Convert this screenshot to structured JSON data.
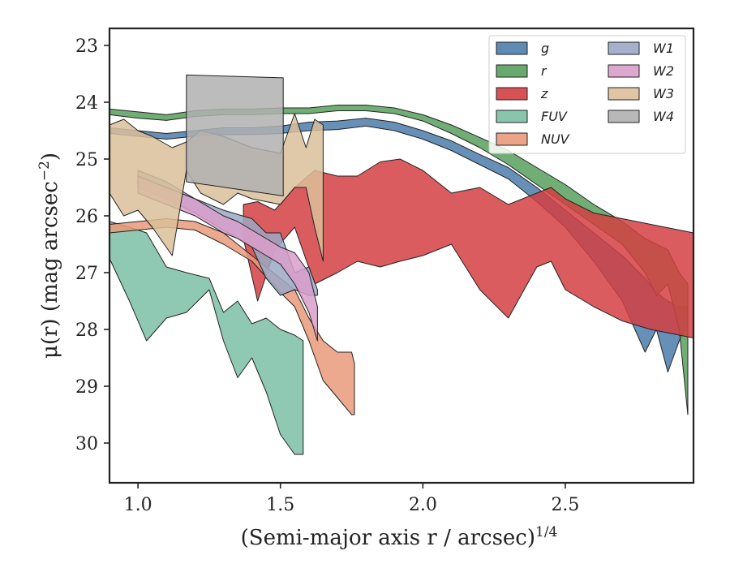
{
  "chart_data": {
    "type": "area",
    "xlabel": "(Semi-major axis r / arcsec)",
    "xlabel_sup": "1/4",
    "ylabel": "μ(r) (mag arcsec",
    "ylabel_sup": "−2",
    "ylabel_close": ")",
    "xlim": [
      0.9,
      2.95
    ],
    "ylim": [
      30.7,
      22.7
    ],
    "y_inverted": true,
    "xticks": [
      "1.0",
      "1.5",
      "2.0",
      "2.5"
    ],
    "xtick_values": [
      1.0,
      1.5,
      2.0,
      2.5
    ],
    "yticks": [
      "23",
      "24",
      "25",
      "26",
      "27",
      "28",
      "29",
      "30"
    ],
    "ytick_values": [
      23,
      24,
      25,
      26,
      27,
      28,
      29,
      30
    ],
    "grid": false,
    "legend_position": "top-right",
    "legend_columns": 2,
    "series": [
      {
        "name": "g",
        "color": "#4c7dac",
        "x": [
          0.9,
          1.0,
          1.1,
          1.2,
          1.3,
          1.4,
          1.5,
          1.6,
          1.7,
          1.8,
          1.9,
          2.0,
          2.1,
          2.2,
          2.3,
          2.4,
          2.5,
          2.6,
          2.7,
          2.78,
          2.82,
          2.86,
          2.9,
          2.93
        ],
        "y_upper": [
          24.45,
          24.5,
          24.55,
          24.5,
          24.45,
          24.45,
          24.42,
          24.35,
          24.33,
          24.28,
          24.35,
          24.5,
          24.68,
          24.92,
          25.15,
          25.5,
          25.9,
          26.3,
          26.7,
          27.1,
          27.35,
          27.5,
          27.6,
          27.6
        ],
        "y_lower": [
          24.55,
          24.6,
          24.65,
          24.6,
          24.57,
          24.57,
          24.55,
          24.5,
          24.48,
          24.42,
          24.5,
          24.65,
          24.85,
          25.1,
          25.35,
          25.75,
          26.2,
          26.8,
          27.5,
          28.4,
          28.0,
          28.75,
          28.2,
          27.9
        ]
      },
      {
        "name": "r",
        "color": "#58a05e",
        "x": [
          0.9,
          1.0,
          1.1,
          1.2,
          1.3,
          1.4,
          1.5,
          1.6,
          1.7,
          1.8,
          1.9,
          2.0,
          2.1,
          2.2,
          2.3,
          2.4,
          2.5,
          2.6,
          2.7,
          2.78,
          2.82,
          2.86,
          2.9,
          2.93
        ],
        "y_upper": [
          24.12,
          24.17,
          24.22,
          24.15,
          24.12,
          24.12,
          24.1,
          24.1,
          24.05,
          24.05,
          24.1,
          24.22,
          24.4,
          24.62,
          24.85,
          25.15,
          25.45,
          25.8,
          26.1,
          26.4,
          26.5,
          26.6,
          27.0,
          27.2
        ],
        "y_lower": [
          24.22,
          24.28,
          24.32,
          24.25,
          24.22,
          24.22,
          24.2,
          24.2,
          24.15,
          24.15,
          24.2,
          24.33,
          24.55,
          24.8,
          25.1,
          25.45,
          25.8,
          26.15,
          26.5,
          27.0,
          27.4,
          27.2,
          28.0,
          29.5
        ]
      },
      {
        "name": "z",
        "color": "#d33f42",
        "x": [
          1.37,
          1.42,
          1.48,
          1.55,
          1.62,
          1.7,
          1.77,
          1.85,
          1.92,
          2.0,
          2.1,
          2.2,
          2.3,
          2.4,
          2.45,
          2.5,
          2.6,
          2.7,
          2.8,
          2.95
        ],
        "y_upper": [
          25.8,
          25.75,
          25.9,
          25.5,
          25.2,
          25.3,
          25.3,
          25.05,
          25.0,
          25.2,
          25.6,
          25.5,
          25.8,
          25.6,
          25.5,
          25.7,
          25.95,
          26.05,
          26.15,
          26.3
        ],
        "y_lower": [
          26.4,
          27.5,
          26.6,
          26.2,
          27.2,
          27.0,
          26.8,
          26.9,
          26.8,
          26.7,
          26.5,
          27.3,
          27.8,
          26.9,
          26.8,
          27.3,
          27.6,
          27.85,
          28.0,
          28.15
        ]
      },
      {
        "name": "FUV",
        "color": "#7bbfa6",
        "x": [
          0.9,
          0.97,
          1.03,
          1.1,
          1.17,
          1.25,
          1.3,
          1.35,
          1.4,
          1.45,
          1.5,
          1.55,
          1.58
        ],
        "y_upper": [
          26.1,
          26.2,
          26.3,
          26.9,
          27.0,
          27.1,
          27.7,
          27.5,
          27.9,
          27.8,
          28.0,
          28.1,
          28.2
        ],
        "y_lower": [
          26.75,
          27.5,
          28.2,
          27.8,
          27.7,
          27.3,
          28.2,
          28.85,
          28.5,
          29.1,
          29.85,
          30.2,
          30.2
        ]
      },
      {
        "name": "NUV",
        "color": "#e99a7a",
        "x": [
          0.9,
          1.0,
          1.1,
          1.2,
          1.3,
          1.4,
          1.5,
          1.55,
          1.6,
          1.65,
          1.7,
          1.75,
          1.76
        ],
        "y_upper": [
          26.15,
          26.1,
          26.05,
          26.1,
          26.3,
          26.7,
          27.1,
          27.3,
          27.8,
          28.2,
          28.4,
          28.4,
          28.6
        ],
        "y_lower": [
          26.3,
          26.25,
          26.2,
          26.25,
          26.5,
          26.8,
          27.35,
          27.6,
          28.2,
          28.9,
          29.2,
          29.5,
          29.5
        ]
      },
      {
        "name": "W1",
        "color": "#9ba8c6",
        "x": [
          1.0,
          1.1,
          1.2,
          1.3,
          1.4,
          1.45,
          1.5,
          1.55,
          1.6,
          1.63
        ],
        "y_upper": [
          25.2,
          25.4,
          25.7,
          25.9,
          26.05,
          26.3,
          26.3,
          27.0,
          26.9,
          27.3
        ],
        "y_lower": [
          25.5,
          25.7,
          25.95,
          26.25,
          26.55,
          27.1,
          27.4,
          27.3,
          27.4,
          27.4
        ]
      },
      {
        "name": "W2",
        "color": "#d99fcb",
        "x": [
          1.0,
          1.1,
          1.15,
          1.2,
          1.25,
          1.3,
          1.35,
          1.4,
          1.45,
          1.5,
          1.55,
          1.6,
          1.63
        ],
        "y_upper": [
          25.3,
          25.5,
          25.6,
          25.7,
          25.85,
          26.0,
          26.1,
          26.25,
          26.4,
          26.55,
          26.65,
          27.0,
          27.6
        ],
        "y_lower": [
          25.6,
          25.8,
          25.9,
          26.0,
          26.15,
          26.3,
          26.4,
          26.55,
          26.7,
          26.85,
          27.2,
          27.7,
          28.2
        ]
      },
      {
        "name": "W3",
        "color": "#dbbf9a",
        "x": [
          0.9,
          0.95,
          1.0,
          1.05,
          1.12,
          1.17,
          1.22,
          1.3,
          1.35,
          1.4,
          1.5,
          1.55,
          1.59,
          1.62,
          1.65
        ],
        "y_upper": [
          24.4,
          24.3,
          24.5,
          24.6,
          24.8,
          24.7,
          24.5,
          24.6,
          24.7,
          24.8,
          24.9,
          24.2,
          24.8,
          24.3,
          24.4
        ],
        "y_lower": [
          25.6,
          26.0,
          25.9,
          26.2,
          26.7,
          25.2,
          25.6,
          25.8,
          25.6,
          25.7,
          25.8,
          25.5,
          25.5,
          26.2,
          26.8
        ]
      },
      {
        "name": "W4",
        "color": "#b0b0b0",
        "x": [
          1.17,
          1.51
        ],
        "y_upper": [
          23.52,
          23.57
        ],
        "y_lower": [
          25.4,
          25.65
        ]
      }
    ]
  }
}
